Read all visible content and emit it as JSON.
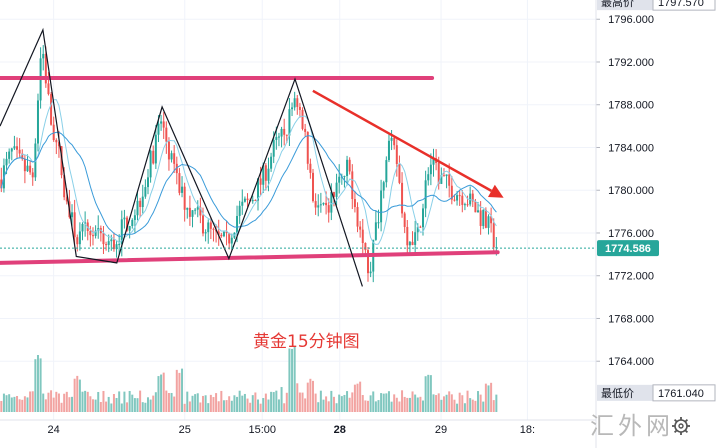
{
  "chart_data": {
    "type": "candlestick",
    "annotation": "黄金15分钟图",
    "ylim": [
      1758.5,
      1797.8
    ],
    "y_ticks": [
      1764,
      1768,
      1772,
      1776,
      1780,
      1784,
      1788,
      1792,
      1796
    ],
    "y_tick_labels": [
      "1764.000",
      "1768.000",
      "1772.000",
      "1776.000",
      "1780.000",
      "1784.000",
      "1788.000",
      "1792.000",
      "1796.000"
    ],
    "x_tick_labels": [
      {
        "t": 0.09,
        "label": "24",
        "bold": false
      },
      {
        "t": 0.31,
        "label": "25",
        "bold": false
      },
      {
        "t": 0.44,
        "label": "15:00",
        "bold": false
      },
      {
        "t": 0.57,
        "label": "28",
        "bold": true
      },
      {
        "t": 0.74,
        "label": "29",
        "bold": false
      },
      {
        "t": 0.885,
        "label": "18:",
        "bold": false
      }
    ],
    "current_price": 1774.586,
    "highest_label": "最高价",
    "highest_value": "1797.570",
    "lowest_label": "最低价",
    "lowest_value": "1761.040",
    "colors": {
      "up": "#26a69a",
      "down": "#ef5350",
      "price_tag": "#26a69a",
      "channel": "#e0407a",
      "arrow": "#e8302a",
      "zigzag": "#131722",
      "ma_fast": "#8ad0e8",
      "ma_slow": "#3a9bd9"
    },
    "channel_lines": [
      {
        "name": "resistance",
        "from": [
          0.0,
          1790.5
        ],
        "to": [
          0.725,
          1790.5
        ]
      },
      {
        "name": "support",
        "from": [
          0.0,
          1773.2
        ],
        "to": [
          0.835,
          1774.2
        ]
      }
    ],
    "trend_arrow": {
      "from": [
        0.525,
        1789.3
      ],
      "to": [
        0.845,
        1779.3
      ]
    },
    "zigzag_points": [
      [
        0.0,
        1786.0
      ],
      [
        0.072,
        1795.0
      ],
      [
        0.128,
        1773.8
      ],
      [
        0.196,
        1773.2
      ],
      [
        0.272,
        1787.8
      ],
      [
        0.384,
        1773.6
      ],
      [
        0.495,
        1790.4
      ],
      [
        0.608,
        1771.0
      ]
    ],
    "price_path": [
      [
        0.0,
        1781.0
      ],
      [
        0.02,
        1783.5
      ],
      [
        0.04,
        1782.0
      ],
      [
        0.055,
        1781.5
      ],
      [
        0.07,
        1794.0
      ],
      [
        0.085,
        1786.5
      ],
      [
        0.1,
        1783.0
      ],
      [
        0.115,
        1778.0
      ],
      [
        0.13,
        1775.5
      ],
      [
        0.15,
        1776.5
      ],
      [
        0.17,
        1775.0
      ],
      [
        0.19,
        1774.8
      ],
      [
        0.21,
        1777.0
      ],
      [
        0.23,
        1778.5
      ],
      [
        0.25,
        1782.0
      ],
      [
        0.27,
        1786.5
      ],
      [
        0.285,
        1783.5
      ],
      [
        0.3,
        1780.0
      ],
      [
        0.32,
        1778.0
      ],
      [
        0.34,
        1777.0
      ],
      [
        0.36,
        1775.5
      ],
      [
        0.38,
        1775.0
      ],
      [
        0.4,
        1778.0
      ],
      [
        0.42,
        1779.0
      ],
      [
        0.44,
        1781.0
      ],
      [
        0.46,
        1784.0
      ],
      [
        0.48,
        1785.5
      ],
      [
        0.495,
        1789.0
      ],
      [
        0.51,
        1786.0
      ],
      [
        0.525,
        1779.5
      ],
      [
        0.545,
        1777.5
      ],
      [
        0.565,
        1780.5
      ],
      [
        0.585,
        1782.0
      ],
      [
        0.605,
        1776.0
      ],
      [
        0.62,
        1772.5
      ],
      [
        0.635,
        1778.0
      ],
      [
        0.65,
        1784.5
      ],
      [
        0.665,
        1783.0
      ],
      [
        0.68,
        1776.0
      ],
      [
        0.7,
        1775.5
      ],
      [
        0.72,
        1782.5
      ],
      [
        0.74,
        1781.0
      ],
      [
        0.76,
        1780.0
      ],
      [
        0.78,
        1779.5
      ],
      [
        0.8,
        1778.0
      ],
      [
        0.82,
        1776.5
      ],
      [
        0.835,
        1774.6
      ]
    ],
    "volume_peaks": [
      [
        0.065,
        0.85
      ],
      [
        0.13,
        0.55
      ],
      [
        0.27,
        0.58
      ],
      [
        0.3,
        0.65
      ],
      [
        0.49,
        1.0
      ],
      [
        0.52,
        0.5
      ],
      [
        0.6,
        0.45
      ],
      [
        0.72,
        0.6
      ],
      [
        0.82,
        0.45
      ]
    ]
  },
  "watermark": {
    "text": "汇外网",
    "icon": "settings-gear-icon"
  }
}
